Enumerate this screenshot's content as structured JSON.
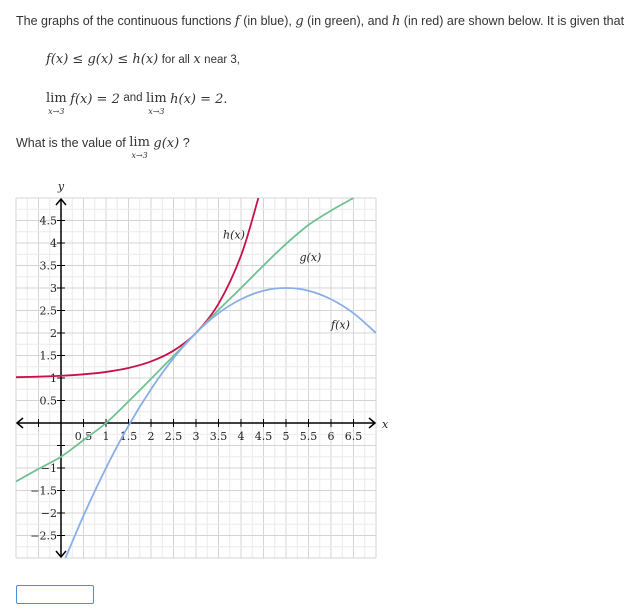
{
  "problem": {
    "intro_pre": "The graphs of the continuous functions",
    "f_sym": "f",
    "f_color_label": "(in blue),",
    "g_sym": "g",
    "g_color_label": "(in green), and",
    "h_sym": "h",
    "h_color_label": "(in red) are shown below. It is given that",
    "ineq": "f(x) ≤ g(x) ≤ h(x)",
    "ineq_text": "for all",
    "ineq_var": "x",
    "ineq_tail": "near 3,",
    "lim_word": "lim",
    "lim_sub": "x→3",
    "lim_f": "f(x) = 2",
    "and": "and",
    "lim_h": "h(x) = 2.",
    "question_pre": "What is the value of",
    "lim_g": "g(x)",
    "question_post": "?"
  },
  "answer": {
    "value": ""
  },
  "chart_data": {
    "type": "line",
    "xlabel": "x",
    "ylabel": "y",
    "xlim": [
      -1,
      7
    ],
    "ylim": [
      -3,
      5
    ],
    "grid": true,
    "x_ticks": [
      "0.5",
      "1",
      "1.5",
      "2",
      "2.5",
      "3",
      "3.5",
      "4",
      "4.5",
      "5",
      "5.5",
      "6",
      "6.5"
    ],
    "y_ticks": [
      {
        "v": 4.5,
        "label": "4.5"
      },
      {
        "v": 4,
        "label": "4"
      },
      {
        "v": 3.5,
        "label": "3.5"
      },
      {
        "v": 3,
        "label": "3"
      },
      {
        "v": 2.5,
        "label": "2.5"
      },
      {
        "v": 2,
        "label": "2"
      },
      {
        "v": 1.5,
        "label": "1.5"
      },
      {
        "v": 1,
        "label": "1"
      },
      {
        "v": 0.5,
        "label": "0.5"
      },
      {
        "v": -0.5,
        "label": ""
      },
      {
        "v": -1,
        "label": "−1"
      },
      {
        "v": -1.5,
        "label": "−1.5"
      },
      {
        "v": -2,
        "label": "−2"
      },
      {
        "v": -2.5,
        "label": "−2.5"
      }
    ],
    "series": [
      {
        "name": "h(x)",
        "color": "#c7114a",
        "label_at": [
          3.6,
          4.1
        ],
        "x": [
          -1,
          -0.5,
          0,
          0.5,
          1,
          1.5,
          2,
          2.5,
          3,
          3.5,
          4,
          4.386
        ],
        "y": [
          1.018,
          1.03,
          1.05,
          1.082,
          1.135,
          1.223,
          1.368,
          1.607,
          2,
          2.649,
          3.718,
          5
        ]
      },
      {
        "name": "g(x)",
        "color": "#6fc192",
        "label_at": [
          5.3,
          3.6
        ],
        "x": [
          -1,
          -0.5,
          0,
          0.5,
          1,
          1.5,
          2,
          2.5,
          3,
          3.5,
          4,
          4.5,
          5,
          5.5,
          6,
          6.5
        ],
        "y": [
          -1.3,
          -1.02,
          -0.75,
          -0.38,
          0,
          0.48,
          0.98,
          1.49,
          2,
          2.51,
          3,
          3.5,
          3.98,
          4.4,
          4.72,
          5
        ]
      },
      {
        "name": "f(x)",
        "color": "#88aee8",
        "label_at": [
          6.0,
          2.1
        ],
        "x": [
          0.1,
          0.5,
          1,
          1.5,
          2,
          2.5,
          3,
          3.5,
          4,
          4.5,
          5,
          5.5,
          6,
          6.5,
          7
        ],
        "y": [
          -3,
          -2.06,
          -1,
          -0.06,
          0.75,
          1.44,
          2,
          2.44,
          2.75,
          2.94,
          3,
          2.94,
          2.75,
          2.44,
          2
        ]
      }
    ]
  }
}
